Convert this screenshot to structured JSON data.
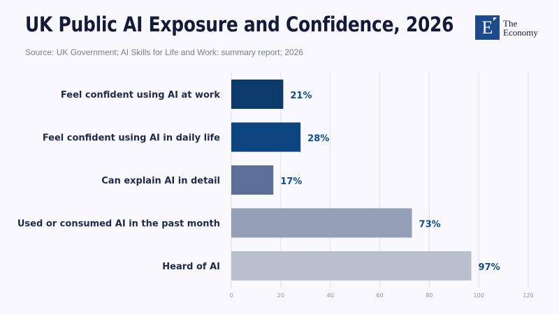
{
  "header": {
    "title": "UK Public AI Exposure and Confidence, 2026",
    "source": "Source: UK Government; AI Skills for Life and Work: summary report; 2026"
  },
  "logo": {
    "letter": "E",
    "line1": "The",
    "line2": "Economy",
    "color": "#1d4a8a"
  },
  "chart_data": {
    "type": "bar",
    "orientation": "horizontal",
    "title": "UK Public AI Exposure and Confidence, 2026",
    "subtitle": "Source: UK Government; AI Skills for Life and Work: summary report; 2026",
    "categories": [
      "Feel confident using AI at work",
      "Feel confident using AI in daily life",
      "Can explain AI in detail",
      "Used or consumed AI in the past month",
      "Heard of AI"
    ],
    "values": [
      21,
      28,
      17,
      73,
      97
    ],
    "value_labels": [
      "21%",
      "28%",
      "17%",
      "73%",
      "97%"
    ],
    "colors": [
      "#0b3a6b",
      "#0c4580",
      "#5b6f99",
      "#94a0b8",
      "#babfcc"
    ],
    "xlabel": "",
    "ylabel": "",
    "xlim": [
      0,
      120
    ],
    "xticks": [
      0,
      20,
      40,
      60,
      80,
      100,
      120
    ],
    "grid": true,
    "legend": "none"
  }
}
